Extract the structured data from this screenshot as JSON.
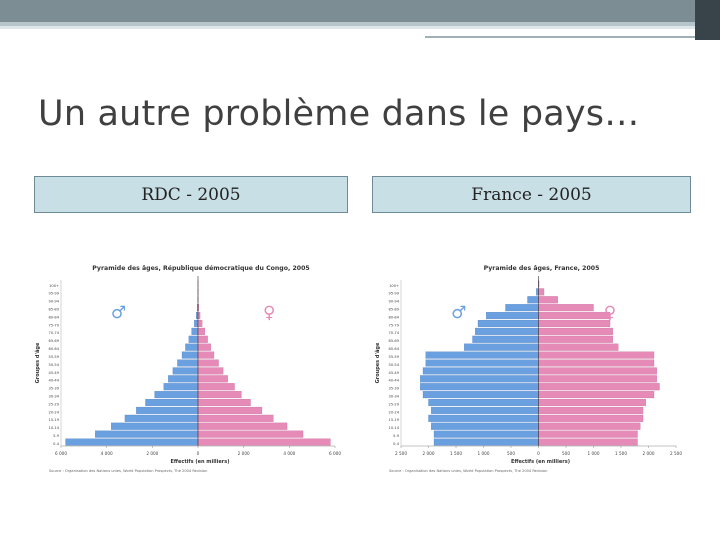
{
  "slide": {
    "title": "Un autre problème dans le pays…",
    "box_left": "RDC - 2005",
    "box_right": "France - 2005"
  },
  "colors": {
    "male": "#6aa0e0",
    "female": "#e68ab8",
    "accent": "#3d5560"
  },
  "chart_data": [
    {
      "type": "bar",
      "title": "Pyramide des âges, République démocratique du Congo, 2005",
      "xlabel": "Effectifs (en milliers)",
      "ylabel": "Groupes d'âge",
      "legend": [
        "♂",
        "♀"
      ],
      "source": "Source : Organisation des Nations unies, World Population Prospects, The 2004 Revision",
      "categories": [
        "0-4",
        "5-9",
        "10-14",
        "15-19",
        "20-24",
        "25-29",
        "30-34",
        "35-39",
        "40-44",
        "45-49",
        "50-54",
        "55-59",
        "60-64",
        "65-69",
        "70-74",
        "75-79",
        "80-84",
        "85-89",
        "90-94",
        "95-99",
        "100+"
      ],
      "xlim": [
        -6000,
        6000
      ],
      "xticks": [
        "6 000",
        "4 000",
        "2 000",
        "0",
        "2 000",
        "4 000",
        "6 000"
      ],
      "series": [
        {
          "name": "♂",
          "values": [
            5800,
            4500,
            3800,
            3200,
            2700,
            2300,
            1900,
            1500,
            1300,
            1100,
            900,
            700,
            550,
            400,
            280,
            160,
            80,
            30,
            10,
            5,
            2
          ]
        },
        {
          "name": "♀",
          "values": [
            5800,
            4600,
            3900,
            3300,
            2800,
            2300,
            1900,
            1600,
            1300,
            1100,
            900,
            700,
            560,
            420,
            300,
            180,
            90,
            35,
            12,
            5,
            2
          ]
        }
      ]
    },
    {
      "type": "bar",
      "title": "Pyramide des âges, France, 2005",
      "xlabel": "Effectifs (en milliers)",
      "ylabel": "Groupes d'âge",
      "legend": [
        "♂",
        "♀"
      ],
      "source": "Source : Organisation des Nations unies, World Population Prospects, The 2004 Revision",
      "categories": [
        "0-4",
        "5-9",
        "10-14",
        "15-19",
        "20-24",
        "25-29",
        "30-34",
        "35-39",
        "40-44",
        "45-49",
        "50-54",
        "55-59",
        "60-64",
        "65-69",
        "70-74",
        "75-79",
        "80-84",
        "85-89",
        "90-94",
        "95-99",
        "100+"
      ],
      "xlim": [
        -2500,
        2500
      ],
      "xticks": [
        "2 500",
        "2 000",
        "1 500",
        "1 000",
        "500",
        "0",
        "500",
        "1 000",
        "1 500",
        "2 000",
        "2 500"
      ],
      "series": [
        {
          "name": "♂",
          "values": [
            1900,
            1900,
            1950,
            2000,
            1950,
            2000,
            2100,
            2150,
            2150,
            2100,
            2050,
            2050,
            1350,
            1200,
            1150,
            1100,
            950,
            600,
            200,
            40,
            5
          ]
        },
        {
          "name": "♀",
          "values": [
            1800,
            1800,
            1850,
            1900,
            1900,
            1950,
            2100,
            2200,
            2150,
            2150,
            2100,
            2100,
            1450,
            1350,
            1350,
            1300,
            1300,
            1000,
            350,
            100,
            10
          ]
        }
      ]
    }
  ]
}
